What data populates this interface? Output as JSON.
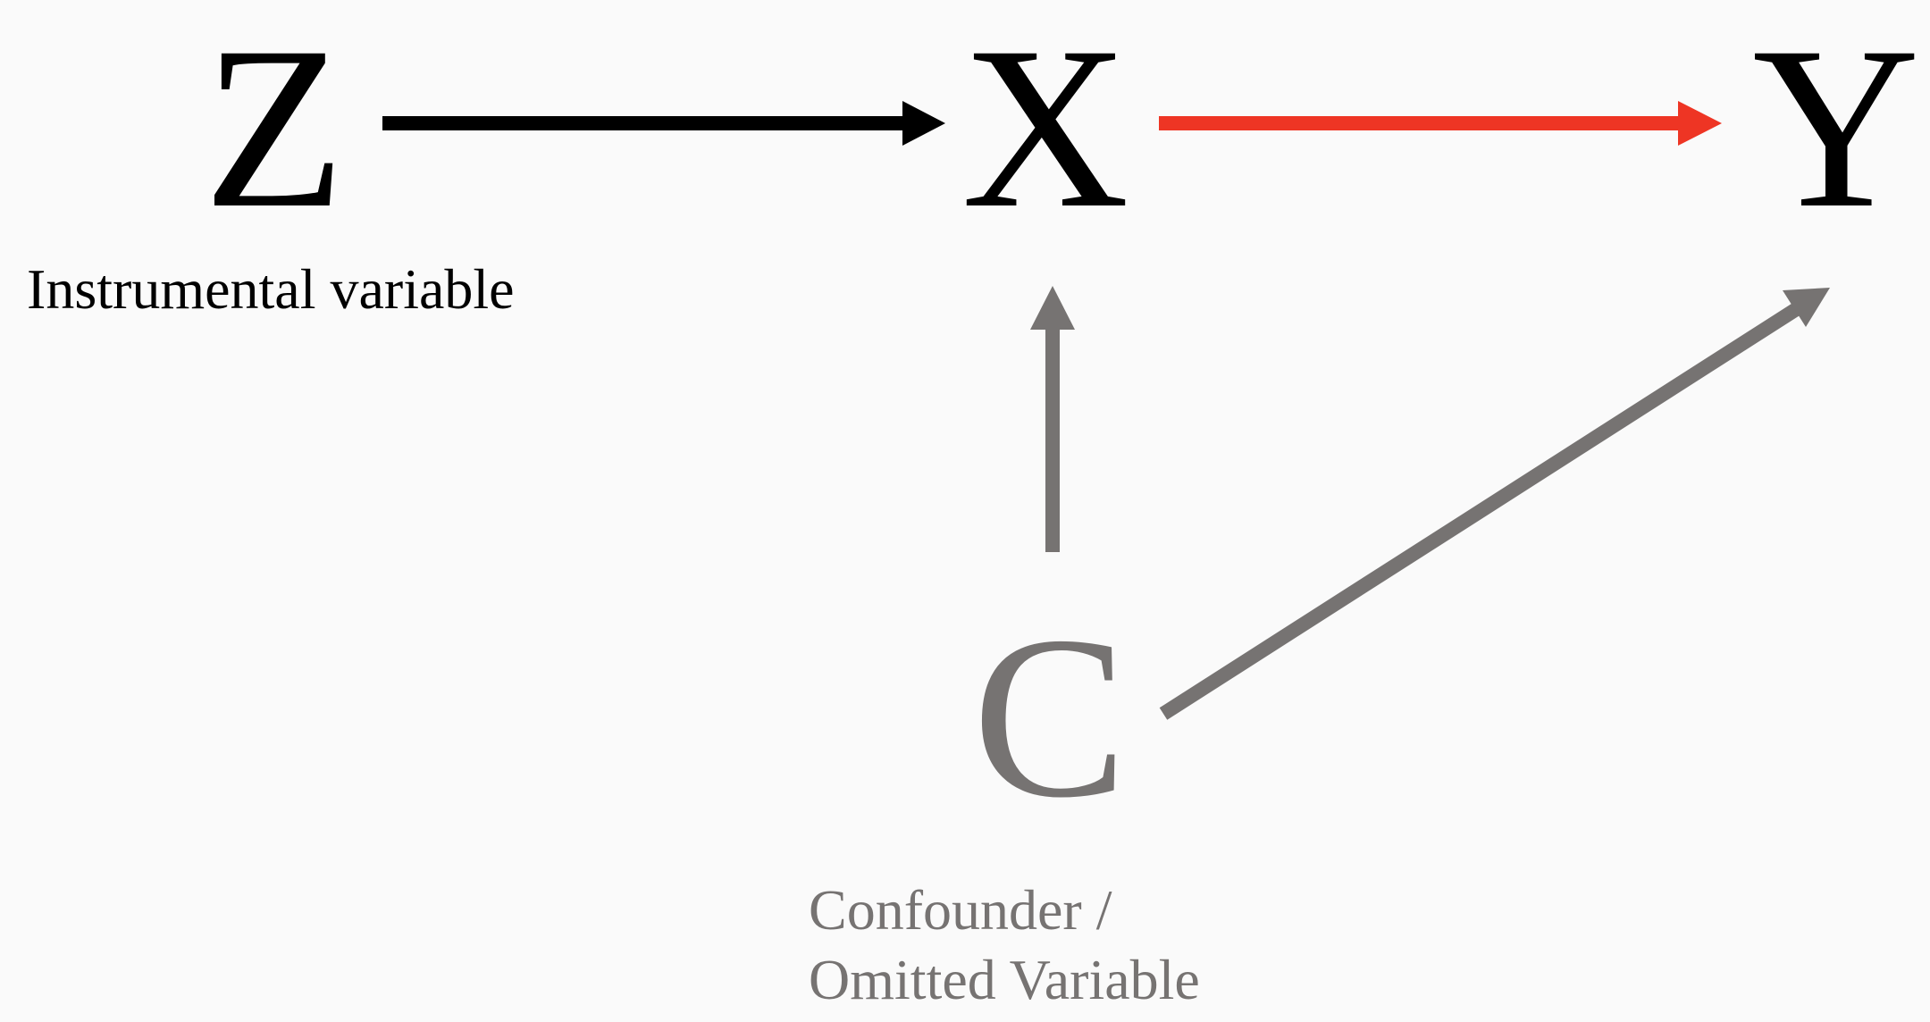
{
  "nodes": {
    "z": {
      "label": "Z",
      "caption": "Instrumental variable"
    },
    "x": {
      "label": "X"
    },
    "y": {
      "label": "Y"
    },
    "c": {
      "label": "C",
      "caption_line1": "Confounder /",
      "caption_line2": "Omitted Variable"
    }
  },
  "edges": [
    {
      "from": "Z",
      "to": "X"
    },
    {
      "from": "X",
      "to": "Y"
    },
    {
      "from": "C",
      "to": "X"
    },
    {
      "from": "C",
      "to": "Y"
    }
  ],
  "colors": {
    "black": "#000000",
    "red": "#ee3524",
    "gray": "#767372",
    "background": "#fafafa"
  }
}
